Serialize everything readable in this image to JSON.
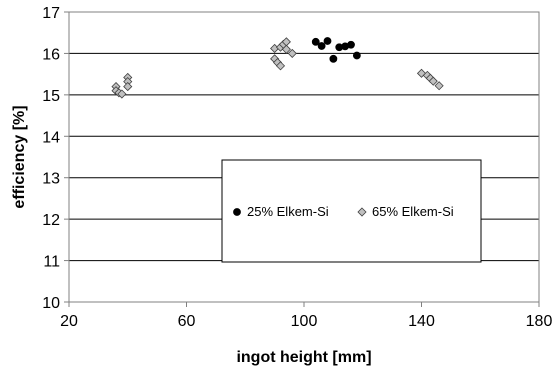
{
  "chart_data": {
    "type": "scatter",
    "xlabel": "ingot height [mm]",
    "ylabel": "efficiency [%]",
    "xlim": [
      20,
      180
    ],
    "ylim": [
      10,
      17
    ],
    "x_ticks": [
      20,
      60,
      100,
      140,
      180
    ],
    "y_ticks": [
      10,
      11,
      12,
      13,
      14,
      15,
      16,
      17
    ],
    "x_tick_labels": [
      "20",
      "60",
      "100",
      "140",
      "180"
    ],
    "y_tick_labels": [
      "10",
      "11",
      "12",
      "13",
      "14",
      "15",
      "16",
      "17"
    ],
    "grid": "horizontal",
    "legend_placement": "lower-center",
    "series": [
      {
        "name": "25% Elkem-Si",
        "marker": "circle",
        "color": "#000000",
        "points": [
          [
            104,
            16.28
          ],
          [
            106,
            16.18
          ],
          [
            108,
            16.3
          ],
          [
            110,
            15.87
          ],
          [
            112,
            16.15
          ],
          [
            114,
            16.17
          ],
          [
            116,
            16.21
          ],
          [
            118,
            15.95
          ]
        ]
      },
      {
        "name": "65% Elkem-Si",
        "marker": "diamond",
        "color": "#c0c0c0",
        "points": [
          [
            36,
            15.2
          ],
          [
            36,
            15.1
          ],
          [
            37,
            15.05
          ],
          [
            38,
            15.02
          ],
          [
            40,
            15.42
          ],
          [
            40,
            15.32
          ],
          [
            40,
            15.2
          ],
          [
            90,
            16.12
          ],
          [
            90,
            15.87
          ],
          [
            91,
            15.78
          ],
          [
            92,
            15.7
          ],
          [
            92,
            16.15
          ],
          [
            93,
            16.22
          ],
          [
            94,
            16.28
          ],
          [
            94,
            16.1
          ],
          [
            96,
            16.0
          ],
          [
            140,
            15.52
          ],
          [
            142,
            15.47
          ],
          [
            143,
            15.4
          ],
          [
            144,
            15.33
          ],
          [
            146,
            15.22
          ]
        ]
      }
    ]
  }
}
